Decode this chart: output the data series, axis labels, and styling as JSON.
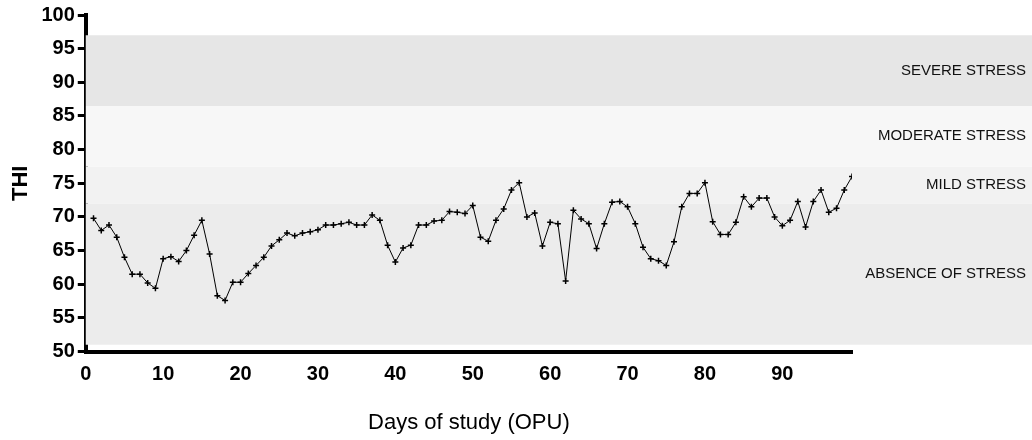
{
  "chart_data": {
    "type": "line",
    "xlabel": "Days of study (OPU)",
    "ylabel": "THI",
    "x": [
      1,
      2,
      3,
      4,
      5,
      6,
      7,
      8,
      9,
      10,
      11,
      12,
      13,
      14,
      15,
      16,
      17,
      18,
      19,
      20,
      21,
      22,
      23,
      24,
      25,
      26,
      27,
      28,
      29,
      30,
      31,
      32,
      33,
      34,
      35,
      36,
      37,
      38,
      39,
      40,
      41,
      42,
      43,
      44,
      45,
      46,
      47,
      48,
      49,
      50,
      51,
      52,
      53,
      54,
      55,
      56,
      57,
      58,
      59,
      60,
      61,
      62,
      63,
      64,
      65,
      66,
      67,
      68,
      69,
      70,
      71,
      72,
      73,
      74,
      75,
      76,
      77,
      78,
      79,
      80,
      81,
      82,
      83,
      84,
      85,
      86,
      87,
      88,
      89,
      90,
      91,
      92,
      93,
      94,
      95,
      96,
      97,
      98,
      99
    ],
    "series": [
      {
        "color": "#000000",
        "values": [
          69.8,
          68,
          68.8,
          67,
          64,
          61.5,
          61.5,
          60.2,
          59.4,
          63.8,
          64.1,
          63.4,
          65,
          67.3,
          69.5,
          64.5,
          58.3,
          57.6,
          60.3,
          60.3,
          61.6,
          62.8,
          64,
          65.7,
          66.6,
          67.6,
          67.2,
          67.6,
          67.8,
          68.1,
          68.8,
          68.8,
          69,
          69.2,
          68.8,
          68.8,
          70.3,
          69.5,
          65.8,
          63.3,
          65.4,
          65.8,
          68.8,
          68.8,
          69.4,
          69.5,
          70.8,
          70.7,
          70.5,
          71.7,
          67,
          66.4,
          69.5,
          71.2,
          74,
          75.1,
          70,
          70.6,
          65.7,
          69.2,
          69,
          60.5,
          71,
          69.7,
          69,
          65.3,
          69,
          72.2,
          72.3,
          71.5,
          69,
          65.5,
          63.8,
          63.5,
          62.8,
          66.3,
          71.5,
          73.5,
          73.5,
          75.1,
          69.3,
          67.4,
          67.4,
          69.2,
          73,
          71.5,
          72.8,
          72.8,
          70,
          68.7,
          69.5,
          72.3,
          68.5,
          72.3,
          74,
          70.7,
          71.3,
          74,
          76
        ]
      }
    ],
    "xlim": [
      0,
      99
    ],
    "xticks": [
      0,
      10,
      20,
      30,
      40,
      50,
      60,
      70,
      80,
      90
    ],
    "ylim": [
      50,
      100
    ],
    "yticks": [
      50,
      55,
      60,
      65,
      70,
      75,
      80,
      85,
      90,
      95,
      100
    ],
    "marker": "cross",
    "grid": false,
    "legend": false,
    "bands": [
      {
        "axis": "y",
        "from": 51,
        "to": 72,
        "label": "ABSENCE OF STRESS",
        "color": "#ececec"
      },
      {
        "axis": "y",
        "from": 72,
        "to": 77.5,
        "label": "MILD STRESS",
        "color": "#f2f2f2"
      },
      {
        "axis": "y",
        "from": 77.5,
        "to": 86.5,
        "label": "MODERATE STRESS",
        "color": "#f7f7f7"
      },
      {
        "axis": "y",
        "from": 86.5,
        "to": 97,
        "label": "SEVERE STRESS",
        "color": "#e6e6e6"
      }
    ]
  }
}
